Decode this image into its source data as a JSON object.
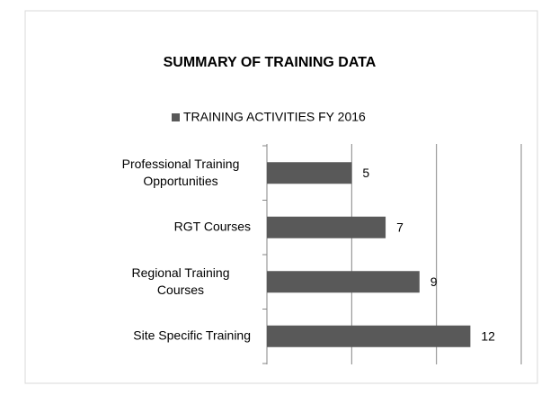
{
  "chart_data": {
    "type": "hbar",
    "title": "SUMMARY OF TRAINING DATA",
    "categories": [
      "Professional Training Opportunities",
      "RGT Courses",
      "Regional Training Courses",
      "Site Specific Training"
    ],
    "series": [
      {
        "name": "TRAINING ACTIVITIES FY 2016",
        "color": "#595959",
        "values": [
          5,
          7,
          9,
          12
        ]
      }
    ],
    "xlim": [
      0,
      15
    ],
    "xticks": [
      5,
      10,
      15
    ],
    "grid": true,
    "legend": "top"
  }
}
